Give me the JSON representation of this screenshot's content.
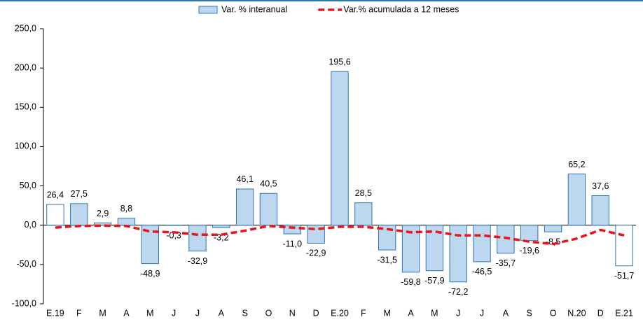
{
  "chart_data": {
    "type": "bar",
    "categories": [
      "E.19",
      "F",
      "M",
      "A",
      "M",
      "J",
      "J",
      "A",
      "S",
      "O",
      "N",
      "D",
      "E.20",
      "F",
      "M",
      "A",
      "M",
      "J",
      "J",
      "A",
      "S",
      "O",
      "N.20",
      "D",
      "E.21"
    ],
    "series": [
      {
        "name": "Var. % interanual",
        "type": "bar",
        "color": "#bdd7ee",
        "edge_color": "#2e75b6",
        "colors": [
          "#ffffff",
          "#bdd7ee",
          "#bdd7ee",
          "#bdd7ee",
          "#bdd7ee",
          "#bdd7ee",
          "#bdd7ee",
          "#bdd7ee",
          "#bdd7ee",
          "#bdd7ee",
          "#bdd7ee",
          "#bdd7ee",
          "#bdd7ee",
          "#bdd7ee",
          "#bdd7ee",
          "#bdd7ee",
          "#bdd7ee",
          "#bdd7ee",
          "#bdd7ee",
          "#bdd7ee",
          "#bdd7ee",
          "#bdd7ee",
          "#bdd7ee",
          "#bdd7ee",
          "#ffffff"
        ],
        "values": [
          26.4,
          27.5,
          2.9,
          8.8,
          -48.9,
          -0.3,
          -32.9,
          -3.2,
          46.1,
          40.5,
          -11.0,
          -22.9,
          195.6,
          28.5,
          -31.5,
          -59.8,
          -57.9,
          -72.2,
          -46.5,
          -35.7,
          -19.6,
          -8.5,
          65.2,
          37.6,
          -51.7
        ],
        "value_labels": [
          "26,4",
          "27,5",
          "2,9",
          "8,8",
          "-48,9",
          "-0,3",
          "-32,9",
          "-3,2",
          "46,1",
          "40,5",
          "-11,0",
          "-22,9",
          "195,6",
          "28,5",
          "-31,5",
          "-59,8",
          "-57,9",
          "-72,2",
          "-46,5",
          "-35,7",
          "-19,6",
          "-8,5",
          "65,2",
          "37,6",
          "-51,7"
        ]
      },
      {
        "name": "Var.% acumulada a 12 meses",
        "type": "line",
        "color": "#e8141b",
        "dashed": true,
        "values": [
          -3,
          -1,
          -0.5,
          -1,
          -8,
          -9,
          -12,
          -12,
          -7,
          -1,
          -3,
          -5,
          -2,
          -2,
          -5,
          -9,
          -8,
          -13,
          -13,
          -16,
          -21,
          -24,
          -17,
          -6,
          -13
        ]
      }
    ],
    "ylim": [
      -100,
      250
    ],
    "yticks": [
      {
        "value": -100,
        "label": "-100,0"
      },
      {
        "value": -50,
        "label": "-50,0"
      },
      {
        "value": 0,
        "label": "0,0"
      },
      {
        "value": 50,
        "label": "50,0"
      },
      {
        "value": 100,
        "label": "100,0"
      },
      {
        "value": 150,
        "label": "150,0"
      },
      {
        "value": 200,
        "label": "200,0"
      },
      {
        "value": 250,
        "label": "250,0"
      }
    ],
    "grid": false,
    "legend": "top"
  }
}
